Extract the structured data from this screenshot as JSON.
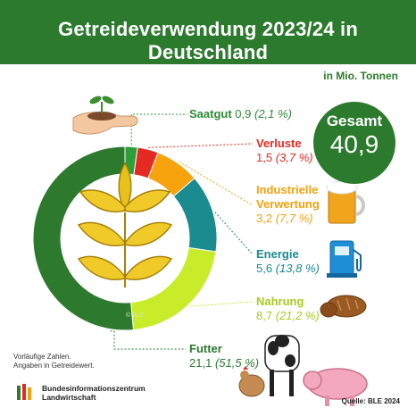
{
  "header": {
    "title": "Getreideverwendung 2023/24 in Deutschland"
  },
  "unit": "in Mio. Tonnen",
  "total": {
    "label": "Gesamt",
    "value": "40,9"
  },
  "labels": {
    "saatgut": {
      "name": "Saatgut",
      "value": "0,9",
      "pct": "(2,1 %)"
    },
    "verluste": {
      "name": "Verluste",
      "value": "1,5",
      "pct": "(3,7 %)"
    },
    "industrie": {
      "name1": "Industrielle",
      "name2": "Verwertung",
      "value": "3,2",
      "pct": "(7,7 %)"
    },
    "energie": {
      "name": "Energie",
      "value": "5,6",
      "pct": "(13,8 %)"
    },
    "nahrung": {
      "name": "Nahrung",
      "value": "8,7",
      "pct": "(21,2 %)"
    },
    "futter": {
      "name": "Futter",
      "value": "21,1",
      "pct": "(51,5 %)"
    }
  },
  "notes": {
    "line1": "Vorläufige Zahlen.",
    "line2": "Angaben in Getreidewert."
  },
  "brand": {
    "line1": "Bundesinformationszentrum",
    "line2": "Landwirtschaft"
  },
  "source": "Quelle: BLE 2024",
  "copyright": "© BLE",
  "icons": [
    "sprout-hand-icon",
    "beer-mug-icon",
    "fuel-pump-icon",
    "bread-icon",
    "farm-animals-icon",
    "wheat-ear-icon",
    "ble-logo-icon"
  ],
  "chart_data": {
    "type": "pie",
    "subtype": "donut",
    "title": "Getreideverwendung 2023/24 in Deutschland",
    "unit": "in Mio. Tonnen",
    "total": 40.9,
    "slices": [
      {
        "label": "Saatgut",
        "value": 0.9,
        "percent": 2.1,
        "color": "#2e9e3a"
      },
      {
        "label": "Verluste",
        "value": 1.5,
        "percent": 3.7,
        "color": "#e52a24"
      },
      {
        "label": "Industrielle Verwertung",
        "value": 3.2,
        "percent": 7.7,
        "color": "#f7a30e"
      },
      {
        "label": "Energie",
        "value": 5.6,
        "percent": 13.8,
        "color": "#1a8b8e"
      },
      {
        "label": "Nahrung",
        "value": 8.7,
        "percent": 21.2,
        "color": "#c9ec2a"
      },
      {
        "label": "Futter",
        "value": 21.1,
        "percent": 51.5,
        "color": "#2d7a2f"
      }
    ]
  },
  "colors": {
    "green_dark": "#2c7a2e",
    "red": "#e52a24",
    "orange": "#f2a20c",
    "teal": "#1a8b8e",
    "lime_text": "#a8cc1e"
  }
}
